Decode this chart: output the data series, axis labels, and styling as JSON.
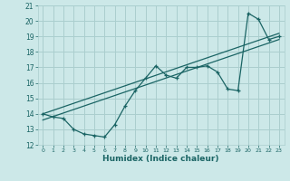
{
  "xlabel": "Humidex (Indice chaleur)",
  "ylabel": "",
  "xlim": [
    -0.5,
    23.5
  ],
  "ylim": [
    12,
    21
  ],
  "yticks": [
    12,
    13,
    14,
    15,
    16,
    17,
    18,
    19,
    20,
    21
  ],
  "xticks": [
    0,
    1,
    2,
    3,
    4,
    5,
    6,
    7,
    8,
    9,
    10,
    11,
    12,
    13,
    14,
    15,
    16,
    17,
    18,
    19,
    20,
    21,
    22,
    23
  ],
  "bg_color": "#cce8e8",
  "grid_color": "#aacece",
  "line_color": "#1a6464",
  "data_x": [
    0,
    1,
    2,
    3,
    4,
    5,
    6,
    7,
    8,
    9,
    10,
    11,
    12,
    13,
    14,
    15,
    16,
    17,
    18,
    19,
    20,
    21,
    22,
    23
  ],
  "data_y": [
    14.0,
    13.8,
    13.7,
    13.0,
    12.7,
    12.6,
    12.5,
    13.3,
    14.5,
    15.5,
    16.3,
    17.1,
    16.5,
    16.3,
    17.0,
    17.0,
    17.1,
    16.7,
    15.6,
    15.5,
    20.5,
    20.1,
    18.8,
    19.0
  ],
  "trend1_x": [
    0,
    23
  ],
  "trend1_y": [
    14.0,
    19.2
  ],
  "trend2_x": [
    0,
    23
  ],
  "trend2_y": [
    13.6,
    18.8
  ]
}
